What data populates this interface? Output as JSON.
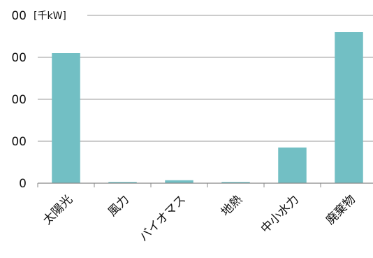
{
  "chart_data": {
    "type": "bar",
    "unit_label": "[千kW]",
    "categories": [
      "太陽光",
      "風力",
      "バイオマス",
      "地熱",
      "中小水力",
      "廃棄物"
    ],
    "values": [
      310,
      3,
      7,
      3,
      85,
      360
    ],
    "y_tick_labels": [
      "0",
      "00",
      "00",
      "00",
      "00"
    ],
    "ylim": [
      0,
      400
    ],
    "grid": true,
    "bar_color": "#72bfc4",
    "gridline_color": "#999999",
    "axis_color": "#888888"
  }
}
